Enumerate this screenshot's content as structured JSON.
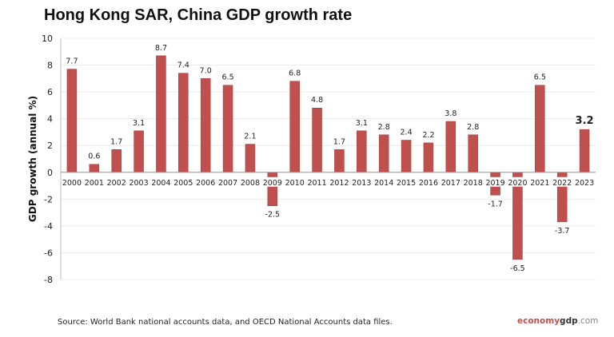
{
  "chart_data": {
    "type": "bar",
    "title": "Hong Kong SAR, China GDP growth rate",
    "ylabel": "GDP growth (annual %)",
    "xlabel": "",
    "ylim": [
      -8,
      10
    ],
    "yticks": [
      -8,
      -6,
      -4,
      -2,
      0,
      2,
      4,
      6,
      8,
      10
    ],
    "grid": true,
    "bar_color": "#c0504d",
    "categories": [
      "2000",
      "2001",
      "2002",
      "2003",
      "2004",
      "2005",
      "2006",
      "2007",
      "2008",
      "2009",
      "2010",
      "2011",
      "2012",
      "2013",
      "2014",
      "2015",
      "2016",
      "2017",
      "2018",
      "2019",
      "2020",
      "2021",
      "2022",
      "2023"
    ],
    "values": [
      7.7,
      0.6,
      1.7,
      3.1,
      8.7,
      7.4,
      7.0,
      6.5,
      2.1,
      -2.5,
      6.8,
      4.8,
      1.7,
      3.1,
      2.8,
      2.4,
      2.2,
      3.8,
      2.8,
      -1.7,
      -6.5,
      6.5,
      -3.7,
      3.2
    ],
    "data_labels": [
      "7.7",
      "0.6",
      "1.7",
      "3.1",
      "8.7",
      "7.4",
      "7.0",
      "6.5",
      "2.1",
      "-2.5",
      "6.8",
      "4.8",
      "1.7",
      "3.1",
      "2.8",
      "2.4",
      "2.2",
      "3.8",
      "2.8",
      "-1.7",
      "-6.5",
      "6.5",
      "-3.7",
      "3.2"
    ]
  },
  "source": "Source:  World Bank national accounts data, and OECD National Accounts data files.",
  "logo": {
    "part1": "economy",
    "part2": "gdp",
    "part3": ".com"
  }
}
